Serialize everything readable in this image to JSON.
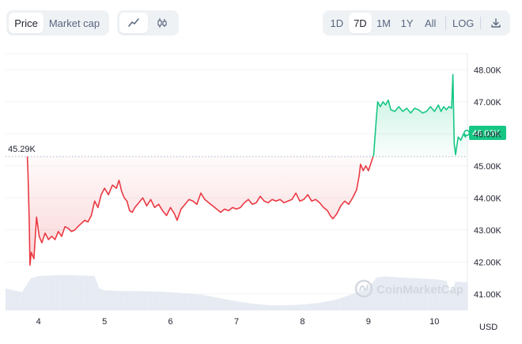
{
  "view_toggle": {
    "price_label": "Price",
    "market_cap_label": "Market cap",
    "active": "price"
  },
  "chart_type": {
    "line_icon": "line-chart-icon",
    "candle_icon": "candlestick-icon",
    "active": "line"
  },
  "range": {
    "buttons": [
      "1D",
      "7D",
      "1M",
      "1Y",
      "All"
    ],
    "active": "7D",
    "log_label": "LOG",
    "download_icon": "download-icon"
  },
  "watermark": "CoinMarketCap",
  "currency": "USD",
  "colors": {
    "up": "#16c784",
    "down": "#ea3943",
    "volume": "#dde3ee",
    "grid": "#eff2f5",
    "badge": "#16c784"
  },
  "chart_data": {
    "type": "line",
    "ylabel": "",
    "ylim": [
      40500,
      48500
    ],
    "y_ticks": [
      "41.00K",
      "42.00K",
      "43.00K",
      "44.00K",
      "45.00K",
      "46.00K",
      "47.00K",
      "48.00K"
    ],
    "y_tick_values": [
      41000,
      42000,
      43000,
      44000,
      45000,
      46000,
      47000,
      48000
    ],
    "x_ticks": [
      "4",
      "5",
      "6",
      "7",
      "8",
      "9",
      "10"
    ],
    "x_tick_values": [
      4,
      5,
      6,
      7,
      8,
      9,
      10
    ],
    "xlim": [
      3.5,
      10.5
    ],
    "baseline": 45290,
    "baseline_label": "45.29K",
    "current": 46030,
    "current_label": "46.03K",
    "series": [
      {
        "points": [
          [
            3.83,
            45290
          ],
          [
            3.84,
            44800
          ],
          [
            3.86,
            43200
          ],
          [
            3.87,
            41900
          ],
          [
            3.89,
            42300
          ],
          [
            3.93,
            42100
          ],
          [
            3.97,
            43400
          ],
          [
            4.01,
            42800
          ],
          [
            4.05,
            42600
          ],
          [
            4.1,
            42900
          ],
          [
            4.15,
            42700
          ],
          [
            4.2,
            42800
          ],
          [
            4.25,
            42700
          ],
          [
            4.3,
            42950
          ],
          [
            4.35,
            42800
          ],
          [
            4.4,
            43100
          ],
          [
            4.45,
            43050
          ],
          [
            4.5,
            42950
          ],
          [
            4.55,
            43000
          ],
          [
            4.62,
            43150
          ],
          [
            4.7,
            43300
          ],
          [
            4.75,
            43250
          ],
          [
            4.8,
            43450
          ],
          [
            4.85,
            43900
          ],
          [
            4.9,
            43700
          ],
          [
            4.95,
            44100
          ],
          [
            5.0,
            44300
          ],
          [
            5.06,
            44100
          ],
          [
            5.12,
            44400
          ],
          [
            5.18,
            44300
          ],
          [
            5.22,
            44550
          ],
          [
            5.26,
            44200
          ],
          [
            5.3,
            44000
          ],
          [
            5.34,
            43900
          ],
          [
            5.38,
            43600
          ],
          [
            5.42,
            43550
          ],
          [
            5.46,
            43700
          ],
          [
            5.52,
            43850
          ],
          [
            5.58,
            44000
          ],
          [
            5.64,
            43750
          ],
          [
            5.7,
            43950
          ],
          [
            5.76,
            43700
          ],
          [
            5.82,
            43800
          ],
          [
            5.88,
            43600
          ],
          [
            5.94,
            43450
          ],
          [
            6.0,
            43700
          ],
          [
            6.06,
            43500
          ],
          [
            6.1,
            43300
          ],
          [
            6.16,
            43650
          ],
          [
            6.22,
            43800
          ],
          [
            6.28,
            43950
          ],
          [
            6.34,
            43900
          ],
          [
            6.4,
            43800
          ],
          [
            6.46,
            44150
          ],
          [
            6.52,
            43950
          ],
          [
            6.58,
            43850
          ],
          [
            6.64,
            43750
          ],
          [
            6.7,
            43650
          ],
          [
            6.76,
            43550
          ],
          [
            6.82,
            43650
          ],
          [
            6.88,
            43600
          ],
          [
            6.94,
            43700
          ],
          [
            7.0,
            43650
          ],
          [
            7.06,
            43700
          ],
          [
            7.12,
            43850
          ],
          [
            7.18,
            43950
          ],
          [
            7.24,
            43800
          ],
          [
            7.3,
            43850
          ],
          [
            7.36,
            44050
          ],
          [
            7.42,
            43900
          ],
          [
            7.48,
            43850
          ],
          [
            7.54,
            43950
          ],
          [
            7.6,
            43900
          ],
          [
            7.66,
            43950
          ],
          [
            7.72,
            43850
          ],
          [
            7.78,
            43900
          ],
          [
            7.84,
            43950
          ],
          [
            7.9,
            44150
          ],
          [
            7.96,
            43900
          ],
          [
            8.02,
            43950
          ],
          [
            8.08,
            44100
          ],
          [
            8.14,
            43900
          ],
          [
            8.2,
            43950
          ],
          [
            8.26,
            43850
          ],
          [
            8.32,
            43700
          ],
          [
            8.38,
            43600
          ],
          [
            8.42,
            43450
          ],
          [
            8.46,
            43350
          ],
          [
            8.52,
            43500
          ],
          [
            8.58,
            43750
          ],
          [
            8.64,
            43900
          ],
          [
            8.7,
            43800
          ],
          [
            8.76,
            44000
          ],
          [
            8.82,
            44250
          ],
          [
            8.86,
            44700
          ],
          [
            8.88,
            45050
          ],
          [
            8.92,
            44850
          ],
          [
            8.96,
            45000
          ],
          [
            9.0,
            44850
          ],
          [
            9.04,
            45100
          ],
          [
            9.08,
            45350
          ],
          [
            9.12,
            46500
          ],
          [
            9.14,
            47000
          ],
          [
            9.18,
            46850
          ],
          [
            9.22,
            47000
          ],
          [
            9.26,
            46900
          ],
          [
            9.3,
            47050
          ],
          [
            9.34,
            46750
          ],
          [
            9.4,
            46700
          ],
          [
            9.46,
            46850
          ],
          [
            9.52,
            46700
          ],
          [
            9.58,
            46800
          ],
          [
            9.64,
            46650
          ],
          [
            9.7,
            46800
          ],
          [
            9.76,
            46750
          ],
          [
            9.82,
            46650
          ],
          [
            9.88,
            46700
          ],
          [
            9.94,
            46850
          ],
          [
            10.0,
            46700
          ],
          [
            10.06,
            46900
          ],
          [
            10.1,
            46700
          ],
          [
            10.14,
            46850
          ],
          [
            10.18,
            46750
          ],
          [
            10.22,
            46850
          ],
          [
            10.26,
            46800
          ],
          [
            10.28,
            47850
          ],
          [
            10.3,
            45700
          ],
          [
            10.32,
            45350
          ],
          [
            10.36,
            45900
          ],
          [
            10.4,
            45800
          ],
          [
            10.44,
            46000
          ],
          [
            10.47,
            45900
          ],
          [
            10.49,
            46030
          ]
        ]
      }
    ],
    "volume": {
      "x": [
        3.5,
        3.62,
        3.75,
        3.88,
        4.0,
        4.25,
        4.5,
        4.75,
        4.85,
        4.92,
        5.0,
        5.25,
        5.5,
        5.75,
        6.0,
        6.25,
        6.5,
        6.75,
        7.0,
        7.25,
        7.5,
        7.75,
        8.0,
        8.25,
        8.5,
        8.75,
        9.0,
        9.12,
        9.25,
        9.5,
        9.75,
        10.0,
        10.18,
        10.25,
        10.32,
        10.5
      ],
      "values": [
        0.55,
        0.5,
        0.45,
        0.8,
        0.86,
        0.88,
        0.88,
        0.87,
        0.86,
        0.55,
        0.5,
        0.48,
        0.48,
        0.47,
        0.45,
        0.42,
        0.38,
        0.3,
        0.22,
        0.16,
        0.12,
        0.12,
        0.14,
        0.18,
        0.26,
        0.4,
        0.55,
        0.82,
        0.85,
        0.82,
        0.8,
        0.78,
        0.74,
        0.4,
        0.72,
        0.7
      ]
    }
  }
}
